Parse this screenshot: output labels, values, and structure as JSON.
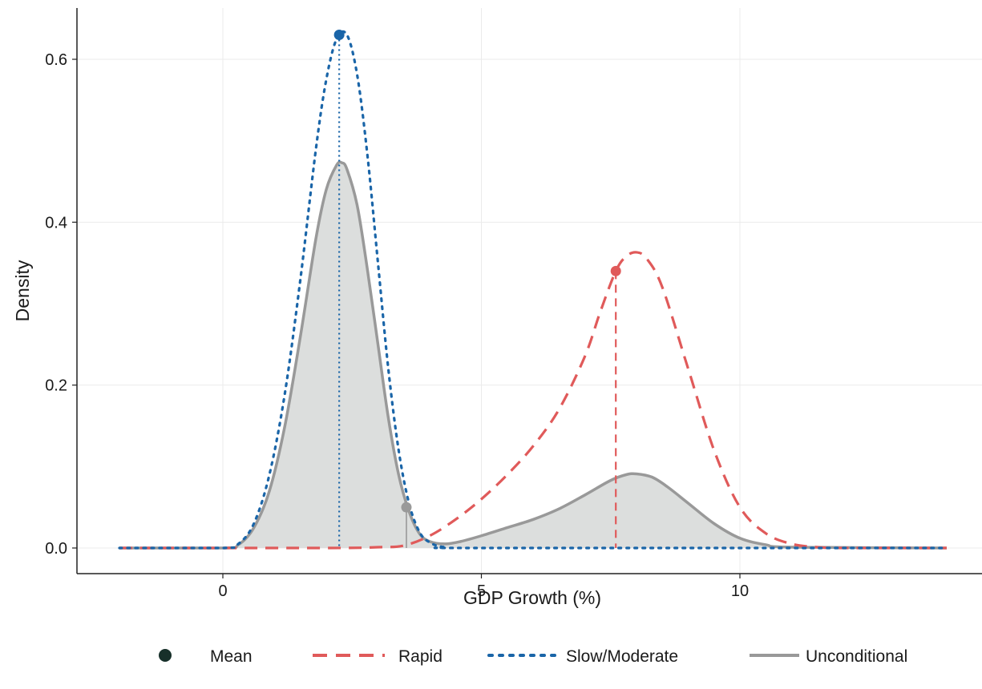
{
  "chart_data": {
    "type": "line",
    "xlabel": "GDP Growth (%)",
    "ylabel": "Density",
    "xlim": [
      -2,
      14
    ],
    "ylim": [
      0,
      0.65
    ],
    "x_ticks": [
      0,
      5,
      10
    ],
    "x_tick_labels": [
      "0",
      "5",
      "10"
    ],
    "y_ticks": [
      0,
      0.2,
      0.4,
      0.6
    ],
    "y_tick_labels": [
      "0.0",
      "0.2",
      "0.4",
      "0.6"
    ],
    "grid": true,
    "legend_position": "bottom",
    "legend": [
      {
        "label": "Mean",
        "style": "point",
        "color": "#17302a"
      },
      {
        "label": "Rapid",
        "style": "dashed",
        "color": "#e05a5a"
      },
      {
        "label": "Slow/Moderate",
        "style": "dotted",
        "color": "#1a65a8"
      },
      {
        "label": "Unconditional",
        "style": "solid",
        "color": "#999999"
      }
    ],
    "series": [
      {
        "name": "Rapid",
        "style": "dashed",
        "color": "#e05a5a",
        "x": [
          -2,
          2,
          3,
          3.5,
          4,
          4.5,
          5,
          5.5,
          6,
          6.5,
          7,
          7.3,
          7.6,
          7.8,
          8.0,
          8.2,
          8.5,
          9.0,
          9.5,
          10.0,
          10.5,
          11.0,
          11.5,
          12,
          14
        ],
        "y": [
          0,
          0,
          0.001,
          0.003,
          0.015,
          0.035,
          0.06,
          0.09,
          0.125,
          0.17,
          0.235,
          0.29,
          0.34,
          0.358,
          0.363,
          0.355,
          0.32,
          0.22,
          0.12,
          0.05,
          0.018,
          0.005,
          0.001,
          0,
          0
        ]
      },
      {
        "name": "Slow/Moderate",
        "style": "dotted",
        "color": "#1a65a8",
        "x": [
          -2,
          0,
          0.3,
          0.6,
          0.9,
          1.2,
          1.5,
          1.8,
          2.0,
          2.2,
          2.4,
          2.6,
          2.8,
          3.0,
          3.2,
          3.4,
          3.6,
          3.8,
          4.0,
          4.3,
          5,
          14
        ],
        "y": [
          0,
          0,
          0.005,
          0.03,
          0.09,
          0.19,
          0.33,
          0.49,
          0.575,
          0.625,
          0.63,
          0.58,
          0.48,
          0.35,
          0.22,
          0.12,
          0.055,
          0.02,
          0.007,
          0.001,
          0,
          0
        ]
      },
      {
        "name": "Unconditional",
        "style": "solid",
        "color": "#999999",
        "fill": "#dcdedd",
        "x": [
          -2,
          0,
          0.3,
          0.6,
          0.9,
          1.2,
          1.5,
          1.8,
          2.0,
          2.2,
          2.3,
          2.4,
          2.6,
          2.8,
          3.0,
          3.2,
          3.4,
          3.6,
          3.8,
          4.0,
          4.3,
          4.6,
          5.0,
          5.5,
          6.0,
          6.5,
          7.0,
          7.5,
          7.8,
          8.0,
          8.3,
          8.6,
          9.0,
          9.5,
          10.0,
          10.5,
          11.0,
          14
        ],
        "y": [
          0,
          0,
          0.004,
          0.025,
          0.07,
          0.15,
          0.26,
          0.38,
          0.44,
          0.47,
          0.473,
          0.465,
          0.42,
          0.34,
          0.25,
          0.16,
          0.09,
          0.045,
          0.018,
          0.008,
          0.005,
          0.008,
          0.015,
          0.025,
          0.035,
          0.048,
          0.065,
          0.083,
          0.09,
          0.091,
          0.087,
          0.075,
          0.055,
          0.03,
          0.012,
          0.004,
          0.001,
          0
        ]
      }
    ],
    "means": [
      {
        "series": "Slow/Moderate",
        "x": 2.25,
        "y": 0.63,
        "color": "#1a65a8",
        "line_style": "dotted"
      },
      {
        "series": "Rapid",
        "x": 7.6,
        "y": 0.34,
        "color": "#e05a5a",
        "line_style": "dashed"
      },
      {
        "series": "Unconditional",
        "x": 3.55,
        "y": 0.05,
        "color": "#999999",
        "line_style": "solid"
      }
    ]
  }
}
